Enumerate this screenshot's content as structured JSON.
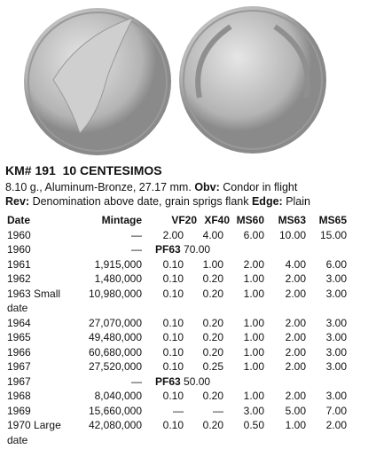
{
  "header": {
    "title": "KM# 191  10 CENTESIMOS"
  },
  "specs": {
    "line1": "8.10 g., Aluminum-Bronze, 27.17 mm.",
    "obv_label": "Obv:",
    "obv": "Condor in flight",
    "rev_label": "Rev:",
    "rev": "Denomination above date, grain sprigs flank",
    "edge_label": "Edge:",
    "edge": "Plain"
  },
  "table": {
    "columns": [
      "Date",
      "Mintage",
      "VF20",
      "XF40",
      "MS60",
      "MS63",
      "MS65"
    ],
    "rows": [
      {
        "date": "1960",
        "mintage": "—",
        "grades": [
          "2.00",
          "4.00",
          "6.00",
          "10.00",
          "15.00"
        ]
      },
      {
        "date": "1960",
        "mintage": "—",
        "proof": "PF63",
        "proof_value": "70.00"
      },
      {
        "date": "1961",
        "mintage": "1,915,000",
        "grades": [
          "0.10",
          "1.00",
          "2.00",
          "4.00",
          "6.00"
        ]
      },
      {
        "date": "1962",
        "mintage": "1,480,000",
        "grades": [
          "0.10",
          "0.20",
          "1.00",
          "2.00",
          "3.00"
        ]
      },
      {
        "date": "1963",
        "note": "Small date",
        "mintage": "10,980,000",
        "grades": [
          "0.10",
          "0.20",
          "1.00",
          "2.00",
          "3.00"
        ]
      },
      {
        "date": "1964",
        "mintage": "27,070,000",
        "grades": [
          "0.10",
          "0.20",
          "1.00",
          "2.00",
          "3.00"
        ]
      },
      {
        "date": "1965",
        "mintage": "49,480,000",
        "grades": [
          "0.10",
          "0.20",
          "1.00",
          "2.00",
          "3.00"
        ]
      },
      {
        "date": "1966",
        "mintage": "60,680,000",
        "grades": [
          "0.10",
          "0.20",
          "1.00",
          "2.00",
          "3.00"
        ]
      },
      {
        "date": "1967",
        "mintage": "27,520,000",
        "grades": [
          "0.10",
          "0.25",
          "1.00",
          "2.00",
          "3.00"
        ]
      },
      {
        "date": "1967",
        "mintage": "—",
        "proof": "PF63",
        "proof_value": "50.00"
      },
      {
        "date": "1968",
        "mintage": "8,040,000",
        "grades": [
          "0.10",
          "0.20",
          "1.00",
          "2.00",
          "3.00"
        ]
      },
      {
        "date": "1969",
        "mintage": "15,660,000",
        "grades": [
          "—",
          "—",
          "3.00",
          "5.00",
          "7.00"
        ]
      },
      {
        "date": "1970",
        "note": "Large date",
        "mintage": "42,080,000",
        "grades": [
          "0.10",
          "0.20",
          "0.50",
          "1.00",
          "2.00"
        ]
      }
    ]
  }
}
